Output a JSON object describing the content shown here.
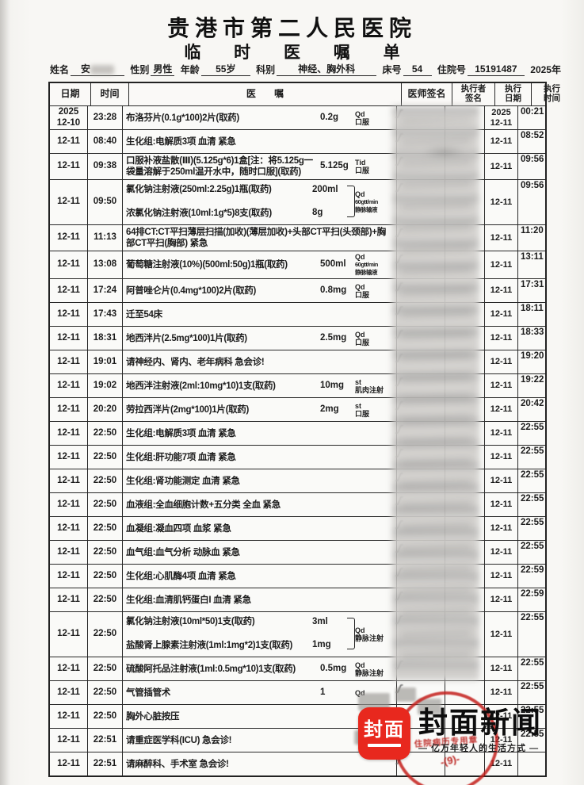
{
  "header": {
    "hospital": "贵港市第二人民医院",
    "form_title": "临 时 医 嘱 单",
    "year_label": "2025年"
  },
  "patient": {
    "name_label": "姓名",
    "name": "安",
    "gender_label": "性别",
    "gender": "男性",
    "age_label": "年龄",
    "age": "55岁",
    "dept_label": "科别",
    "dept": "神经、胸外科",
    "bed_label": "床号",
    "bed": "54",
    "admission_label": "住院号",
    "admission_no": "15191487"
  },
  "table_headers": {
    "date": "日期",
    "time": "时间",
    "order": "医 嘱",
    "physician": "医师签名",
    "executor": "执行者\n签名",
    "exec_date": "执行\n日期",
    "exec_time": "执行\n时间"
  },
  "icons": {
    "signature_stroke_glyph": "ʃ"
  },
  "rows": [
    {
      "date": "2025\n12-10",
      "time": "23:28",
      "group": false,
      "lines": [
        {
          "text": "布洛芬片(0.1g*100)2片(取药)",
          "dose": "0.2g"
        }
      ],
      "freq": [
        "Qd",
        "口服"
      ],
      "exec_date": "2025\n12-11",
      "exec_time": "00:21"
    },
    {
      "date": "12-11",
      "time": "08:40",
      "group": false,
      "lines": [
        {
          "text": "生化组:电解质3项 血清 紧急",
          "dose": ""
        }
      ],
      "freq": [],
      "exec_date": "12-11",
      "exec_time": "08:52"
    },
    {
      "date": "12-11",
      "time": "09:38",
      "group": false,
      "lines": [
        {
          "text": "口服补液盐散(Ⅲ)(5.125g*6)1盒[注：将5.125g一袋量溶解于250ml温开水中，随时口服](取药)",
          "dose": "5.125g"
        }
      ],
      "freq": [
        "Tid",
        "口服"
      ],
      "exec_date": "12-11",
      "exec_time": "09:56"
    },
    {
      "date": "12-11",
      "time": "09:50",
      "group": true,
      "lines": [
        {
          "text": "氯化钠注射液(250ml:2.25g)1瓶(取药)",
          "dose": "200ml"
        },
        {
          "text": "浓氯化钠注射液(10ml:1g*5)8支(取药)",
          "dose": "8g"
        }
      ],
      "freq": [
        "Qd",
        "60gtt/min",
        "静脉输液"
      ],
      "exec_date": "12-11",
      "exec_time": "09:56"
    },
    {
      "date": "12-11",
      "time": "11:13",
      "group": false,
      "lines": [
        {
          "text": "64排CT:CT平扫薄层扫描(加收)(薄层加收)+头部CT平扫(头颈部)+胸部CT平扫(胸部) 紧急",
          "dose": ""
        }
      ],
      "freq": [],
      "exec_date": "12-11",
      "exec_time": "11:20"
    },
    {
      "date": "12-11",
      "time": "13:08",
      "group": false,
      "lines": [
        {
          "text": "葡萄糖注射液(10%)(500ml:50g)1瓶(取药)",
          "dose": "500ml"
        }
      ],
      "freq": [
        "Qd",
        "60gtt/min",
        "静脉输液"
      ],
      "exec_date": "12-11",
      "exec_time": "13:11"
    },
    {
      "date": "12-11",
      "time": "17:24",
      "group": false,
      "lines": [
        {
          "text": "阿普唑仑片(0.4mg*100)2片(取药)",
          "dose": "0.8mg"
        }
      ],
      "freq": [
        "Qd",
        "口服"
      ],
      "exec_date": "12-11",
      "exec_time": "17:31"
    },
    {
      "date": "12-11",
      "time": "17:43",
      "group": false,
      "lines": [
        {
          "text": "迁至54床",
          "dose": ""
        }
      ],
      "freq": [],
      "exec_date": "12-11",
      "exec_time": "18:11"
    },
    {
      "date": "12-11",
      "time": "18:31",
      "group": false,
      "lines": [
        {
          "text": "地西泮片(2.5mg*100)1片(取药)",
          "dose": "2.5mg"
        }
      ],
      "freq": [
        "Qd",
        "口服"
      ],
      "exec_date": "12-11",
      "exec_time": "18:33"
    },
    {
      "date": "12-11",
      "time": "19:01",
      "group": false,
      "lines": [
        {
          "text": "请神经内、肾内、老年病科 急会诊!",
          "dose": ""
        }
      ],
      "freq": [],
      "exec_date": "12-11",
      "exec_time": "19:20"
    },
    {
      "date": "12-11",
      "time": "19:02",
      "group": false,
      "lines": [
        {
          "text": "地西泮注射液(2ml:10mg*10)1支(取药)",
          "dose": "10mg"
        }
      ],
      "freq": [
        "st",
        "肌肉注射"
      ],
      "exec_date": "12-11",
      "exec_time": "19:22"
    },
    {
      "date": "12-11",
      "time": "20:20",
      "group": false,
      "lines": [
        {
          "text": "劳拉西泮片(2mg*100)1片(取药)",
          "dose": "2mg"
        }
      ],
      "freq": [
        "st",
        "口服"
      ],
      "exec_date": "12-11",
      "exec_time": "20:42"
    },
    {
      "date": "12-11",
      "time": "22:50",
      "group": false,
      "lines": [
        {
          "text": "生化组:电解质3项 血清 紧急",
          "dose": ""
        }
      ],
      "freq": [],
      "exec_date": "12-11",
      "exec_time": "22:55"
    },
    {
      "date": "12-11",
      "time": "22:50",
      "group": false,
      "lines": [
        {
          "text": "生化组:肝功能7项 血清 紧急",
          "dose": ""
        }
      ],
      "freq": [],
      "exec_date": "12-11",
      "exec_time": "22:55"
    },
    {
      "date": "12-11",
      "time": "22:50",
      "group": false,
      "lines": [
        {
          "text": "生化组:肾功能测定 血清 紧急",
          "dose": ""
        }
      ],
      "freq": [],
      "exec_date": "12-11",
      "exec_time": "22:55"
    },
    {
      "date": "12-11",
      "time": "22:50",
      "group": false,
      "lines": [
        {
          "text": "血液组:全血细胞计数+五分类 全血 紧急",
          "dose": ""
        }
      ],
      "freq": [],
      "exec_date": "12-11",
      "exec_time": "22:55"
    },
    {
      "date": "12-11",
      "time": "22:50",
      "group": false,
      "lines": [
        {
          "text": "血凝组:凝血四项 血浆 紧急",
          "dose": ""
        }
      ],
      "freq": [],
      "exec_date": "12-11",
      "exec_time": "22:55"
    },
    {
      "date": "12-11",
      "time": "22:50",
      "group": false,
      "lines": [
        {
          "text": "血气组:血气分析 动脉血 紧急",
          "dose": ""
        }
      ],
      "freq": [],
      "exec_date": "12-11",
      "exec_time": "22:55"
    },
    {
      "date": "12-11",
      "time": "22:50",
      "group": false,
      "lines": [
        {
          "text": "生化组:心肌酶4项 血清 紧急",
          "dose": ""
        }
      ],
      "freq": [],
      "exec_date": "12-11",
      "exec_time": "22:59"
    },
    {
      "date": "12-11",
      "time": "22:50",
      "group": false,
      "lines": [
        {
          "text": "生化组:血清肌钙蛋白I 血清 紧急",
          "dose": ""
        }
      ],
      "freq": [],
      "exec_date": "12-11",
      "exec_time": "22:59"
    },
    {
      "date": "12-11",
      "time": "22:50",
      "group": true,
      "lines": [
        {
          "text": "氯化钠注射液(10ml*50)1支(取药)",
          "dose": "3ml"
        },
        {
          "text": "盐酸肾上腺素注射液(1ml:1mg*2)1支(取药)",
          "dose": "1mg"
        }
      ],
      "freq": [
        "Qd",
        "静脉注射"
      ],
      "exec_date": "12-11",
      "exec_time": "22:55"
    },
    {
      "date": "12-11",
      "time": "22:50",
      "group": false,
      "lines": [
        {
          "text": "硫酸阿托品注射液(1ml:0.5mg*10)1支(取药)",
          "dose": "0.5mg"
        }
      ],
      "freq": [
        "Qd",
        "静脉注射"
      ],
      "exec_date": "12-11",
      "exec_time": "22:55"
    },
    {
      "date": "12-11",
      "time": "22:50",
      "group": false,
      "lines": [
        {
          "text": "气管插管术",
          "dose": "1"
        }
      ],
      "freq": [
        "Qd"
      ],
      "exec_date": "12-11",
      "exec_time": "22:55"
    },
    {
      "date": "12-11",
      "time": "22:50",
      "group": false,
      "lines": [
        {
          "text": "胸外心脏按压",
          "dose": ""
        }
      ],
      "freq": [],
      "exec_date": "12-11",
      "exec_time": "22:55"
    },
    {
      "date": "12-11",
      "time": "22:51",
      "group": false,
      "lines": [
        {
          "text": "请重症医学科(ICU) 急会诊!",
          "dose": ""
        }
      ],
      "freq": [],
      "exec_date": "12-11",
      "exec_time": "22:55"
    },
    {
      "date": "12-11",
      "time": "22:51",
      "group": false,
      "lines": [
        {
          "text": "请麻醉科、手术室 急会诊!",
          "dose": ""
        }
      ],
      "freq": [],
      "exec_date": "12-11",
      "exec_time": ""
    }
  ],
  "stamp": {
    "text": "住院病历专用章",
    "number": "-(9)-"
  },
  "watermark": {
    "logo_text": "封面",
    "brand": "封面新闻",
    "tagline": "— 亿万年轻人的生活方式 —"
  }
}
